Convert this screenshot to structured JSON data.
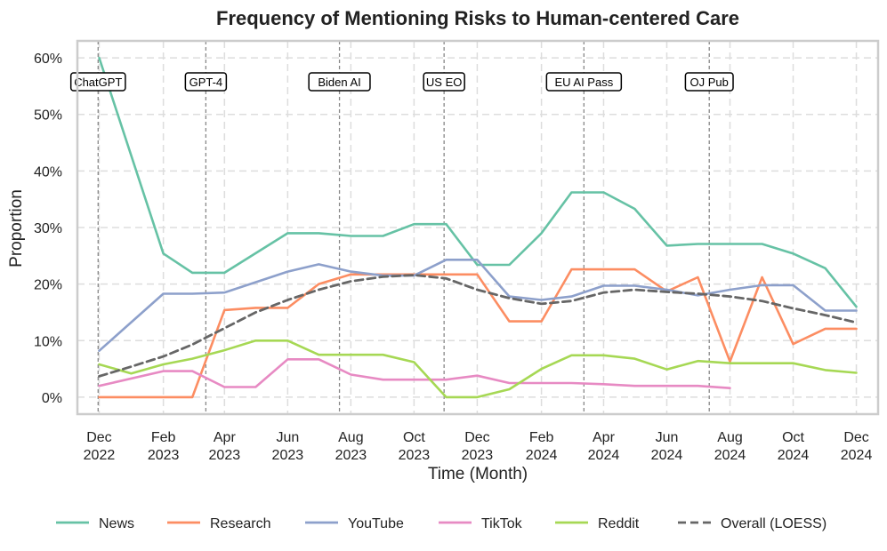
{
  "chart_data": {
    "type": "line",
    "title": "Frequency of Mentioning Risks to Human-centered Care",
    "xlabel": "Time (Month)",
    "ylabel": "Proportion",
    "ylim": [
      -0.03,
      0.63
    ],
    "xlim": [
      "2022-11-10",
      "2024-12-22"
    ],
    "grid": true,
    "legend_position": "bottom",
    "y_ticks": [
      {
        "value": 0.0,
        "label": "0%"
      },
      {
        "value": 0.1,
        "label": "10%"
      },
      {
        "value": 0.2,
        "label": "20%"
      },
      {
        "value": 0.3,
        "label": "30%"
      },
      {
        "value": 0.4,
        "label": "40%"
      },
      {
        "value": 0.5,
        "label": "50%"
      },
      {
        "value": 0.6,
        "label": "60%"
      }
    ],
    "x_ticks": [
      {
        "date": "2022-12-01",
        "line1": "Dec",
        "line2": "2022"
      },
      {
        "date": "2023-02-01",
        "line1": "Feb",
        "line2": "2023"
      },
      {
        "date": "2023-04-01",
        "line1": "Apr",
        "line2": "2023"
      },
      {
        "date": "2023-06-01",
        "line1": "Jun",
        "line2": "2023"
      },
      {
        "date": "2023-08-01",
        "line1": "Aug",
        "line2": "2023"
      },
      {
        "date": "2023-10-01",
        "line1": "Oct",
        "line2": "2023"
      },
      {
        "date": "2023-12-01",
        "line1": "Dec",
        "line2": "2023"
      },
      {
        "date": "2024-02-01",
        "line1": "Feb",
        "line2": "2024"
      },
      {
        "date": "2024-04-01",
        "line1": "Apr",
        "line2": "2024"
      },
      {
        "date": "2024-06-01",
        "line1": "Jun",
        "line2": "2024"
      },
      {
        "date": "2024-08-01",
        "line1": "Aug",
        "line2": "2024"
      },
      {
        "date": "2024-10-01",
        "line1": "Oct",
        "line2": "2024"
      },
      {
        "date": "2024-12-01",
        "line1": "Dec",
        "line2": "2024"
      }
    ],
    "events": [
      {
        "label": "ChatGPT",
        "date": "2022-11-30"
      },
      {
        "label": "GPT-4",
        "date": "2023-03-14"
      },
      {
        "label": "Biden AI",
        "date": "2023-07-21"
      },
      {
        "label": "US EO",
        "date": "2023-10-30"
      },
      {
        "label": "EU AI Pass",
        "date": "2024-03-13"
      },
      {
        "label": "OJ Pub",
        "date": "2024-07-12"
      }
    ],
    "series": [
      {
        "name": "News",
        "color": "#66c2a5",
        "dash": false,
        "points": [
          [
            "2022-12-01",
            0.6
          ],
          [
            "2023-02-01",
            0.254
          ],
          [
            "2023-03-01",
            0.22
          ],
          [
            "2023-04-01",
            0.22
          ],
          [
            "2023-06-01",
            0.29
          ],
          [
            "2023-07-01",
            0.29
          ],
          [
            "2023-08-01",
            0.285
          ],
          [
            "2023-09-01",
            0.285
          ],
          [
            "2023-10-01",
            0.306
          ],
          [
            "2023-11-01",
            0.306
          ],
          [
            "2023-12-01",
            0.234
          ],
          [
            "2024-01-01",
            0.234
          ],
          [
            "2024-02-01",
            0.29
          ],
          [
            "2024-03-01",
            0.362
          ],
          [
            "2024-04-01",
            0.362
          ],
          [
            "2024-05-01",
            0.333
          ],
          [
            "2024-06-01",
            0.268
          ],
          [
            "2024-07-01",
            0.271
          ],
          [
            "2024-08-01",
            0.271
          ],
          [
            "2024-09-01",
            0.271
          ],
          [
            "2024-10-01",
            0.254
          ],
          [
            "2024-11-01",
            0.228
          ],
          [
            "2024-12-01",
            0.16
          ]
        ]
      },
      {
        "name": "Research",
        "color": "#fc8d62",
        "dash": false,
        "points": [
          [
            "2022-12-01",
            0.0
          ],
          [
            "2023-02-01",
            0.0
          ],
          [
            "2023-03-01",
            0.0
          ],
          [
            "2023-04-01",
            0.154
          ],
          [
            "2023-05-01",
            0.158
          ],
          [
            "2023-06-01",
            0.158
          ],
          [
            "2023-07-01",
            0.2
          ],
          [
            "2023-08-01",
            0.217
          ],
          [
            "2023-09-01",
            0.217
          ],
          [
            "2023-10-01",
            0.217
          ],
          [
            "2023-11-01",
            0.217
          ],
          [
            "2023-12-01",
            0.217
          ],
          [
            "2024-01-01",
            0.134
          ],
          [
            "2024-02-01",
            0.134
          ],
          [
            "2024-03-01",
            0.226
          ],
          [
            "2024-04-01",
            0.226
          ],
          [
            "2024-05-01",
            0.226
          ],
          [
            "2024-06-01",
            0.187
          ],
          [
            "2024-07-01",
            0.212
          ],
          [
            "2024-08-01",
            0.063
          ],
          [
            "2024-09-01",
            0.212
          ],
          [
            "2024-10-01",
            0.094
          ],
          [
            "2024-11-01",
            0.121
          ],
          [
            "2024-12-01",
            0.121
          ]
        ]
      },
      {
        "name": "YouTube",
        "color": "#8da0cb",
        "dash": false,
        "points": [
          [
            "2022-12-01",
            0.082
          ],
          [
            "2023-02-01",
            0.183
          ],
          [
            "2023-03-01",
            0.183
          ],
          [
            "2023-04-01",
            0.185
          ],
          [
            "2023-06-01",
            0.222
          ],
          [
            "2023-07-01",
            0.235
          ],
          [
            "2023-08-01",
            0.222
          ],
          [
            "2023-09-01",
            0.215
          ],
          [
            "2023-10-01",
            0.215
          ],
          [
            "2023-11-01",
            0.243
          ],
          [
            "2023-12-01",
            0.243
          ],
          [
            "2024-01-01",
            0.178
          ],
          [
            "2024-02-01",
            0.172
          ],
          [
            "2024-03-01",
            0.178
          ],
          [
            "2024-04-01",
            0.197
          ],
          [
            "2024-05-01",
            0.197
          ],
          [
            "2024-06-01",
            0.19
          ],
          [
            "2024-07-01",
            0.18
          ],
          [
            "2024-08-01",
            0.19
          ],
          [
            "2024-09-01",
            0.198
          ],
          [
            "2024-10-01",
            0.198
          ],
          [
            "2024-11-01",
            0.153
          ],
          [
            "2024-12-01",
            0.153
          ]
        ]
      },
      {
        "name": "TikTok",
        "color": "#e78ac3",
        "dash": false,
        "points": [
          [
            "2022-12-01",
            0.02
          ],
          [
            "2023-02-01",
            0.046
          ],
          [
            "2023-03-01",
            0.046
          ],
          [
            "2023-04-01",
            0.018
          ],
          [
            "2023-05-01",
            0.018
          ],
          [
            "2023-06-01",
            0.067
          ],
          [
            "2023-07-01",
            0.067
          ],
          [
            "2023-08-01",
            0.04
          ],
          [
            "2023-09-01",
            0.031
          ],
          [
            "2023-10-01",
            0.031
          ],
          [
            "2023-11-01",
            0.031
          ],
          [
            "2023-12-01",
            0.038
          ],
          [
            "2024-01-01",
            0.025
          ],
          [
            "2024-02-01",
            0.025
          ],
          [
            "2024-03-01",
            0.025
          ],
          [
            "2024-04-01",
            0.023
          ],
          [
            "2024-05-01",
            0.02
          ],
          [
            "2024-06-01",
            0.02
          ],
          [
            "2024-07-01",
            0.02
          ],
          [
            "2024-08-01",
            0.016
          ]
        ]
      },
      {
        "name": "Reddit",
        "color": "#a6d854",
        "dash": false,
        "points": [
          [
            "2022-12-01",
            0.058
          ],
          [
            "2023-01-01",
            0.042
          ],
          [
            "2023-02-01",
            0.058
          ],
          [
            "2023-03-01",
            0.068
          ],
          [
            "2023-04-01",
            0.083
          ],
          [
            "2023-05-01",
            0.1
          ],
          [
            "2023-06-01",
            0.1
          ],
          [
            "2023-07-01",
            0.075
          ],
          [
            "2023-08-01",
            0.075
          ],
          [
            "2023-09-01",
            0.075
          ],
          [
            "2023-10-01",
            0.062
          ],
          [
            "2023-11-01",
            0.0
          ],
          [
            "2023-12-01",
            0.0
          ],
          [
            "2024-01-01",
            0.014
          ],
          [
            "2024-02-01",
            0.05
          ],
          [
            "2024-03-01",
            0.074
          ],
          [
            "2024-04-01",
            0.074
          ],
          [
            "2024-05-01",
            0.068
          ],
          [
            "2024-06-01",
            0.049
          ],
          [
            "2024-07-01",
            0.064
          ],
          [
            "2024-08-01",
            0.06
          ],
          [
            "2024-09-01",
            0.06
          ],
          [
            "2024-10-01",
            0.06
          ],
          [
            "2024-11-01",
            0.048
          ],
          [
            "2024-12-01",
            0.043
          ]
        ]
      },
      {
        "name": "Overall (LOESS)",
        "color": "#666666",
        "dash": true,
        "points": [
          [
            "2022-12-01",
            0.037
          ],
          [
            "2023-01-01",
            0.054
          ],
          [
            "2023-02-01",
            0.072
          ],
          [
            "2023-03-01",
            0.093
          ],
          [
            "2023-04-01",
            0.122
          ],
          [
            "2023-05-01",
            0.15
          ],
          [
            "2023-06-01",
            0.172
          ],
          [
            "2023-07-01",
            0.19
          ],
          [
            "2023-08-01",
            0.205
          ],
          [
            "2023-09-01",
            0.213
          ],
          [
            "2023-10-01",
            0.216
          ],
          [
            "2023-11-01",
            0.21
          ],
          [
            "2023-12-01",
            0.19
          ],
          [
            "2024-01-01",
            0.175
          ],
          [
            "2024-02-01",
            0.165
          ],
          [
            "2024-03-01",
            0.17
          ],
          [
            "2024-04-01",
            0.185
          ],
          [
            "2024-05-01",
            0.19
          ],
          [
            "2024-06-01",
            0.186
          ],
          [
            "2024-07-01",
            0.183
          ],
          [
            "2024-08-01",
            0.178
          ],
          [
            "2024-09-01",
            0.17
          ],
          [
            "2024-10-01",
            0.157
          ],
          [
            "2024-11-01",
            0.145
          ],
          [
            "2024-12-01",
            0.132
          ]
        ]
      }
    ]
  }
}
